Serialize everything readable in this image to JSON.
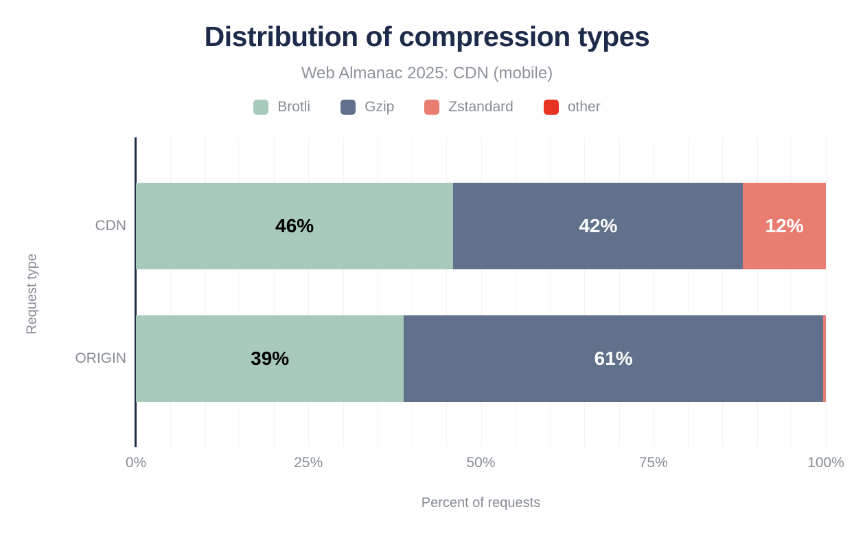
{
  "colors": {
    "title": "#1e2a4a",
    "axis_line": "#1e2a4a",
    "muted_text": "#868c94",
    "subtitle_text": "#8d939b",
    "grid": "#f3f3f3",
    "background": "#ffffff"
  },
  "chart_data": {
    "type": "bar",
    "orientation": "horizontal",
    "stacked": true,
    "title": "Distribution of compression types",
    "subtitle": "Web Almanac 2025: CDN (mobile)",
    "xlabel": "Percent of requests",
    "ylabel": "Request type",
    "xlim": [
      0,
      100
    ],
    "grid": {
      "show": true,
      "interval": 5,
      "color": "#f3f3f3"
    },
    "legend_position": "top",
    "x_ticks": [
      {
        "value": 0,
        "label": "0%"
      },
      {
        "value": 25,
        "label": "25%"
      },
      {
        "value": 50,
        "label": "50%"
      },
      {
        "value": 75,
        "label": "75%"
      },
      {
        "value": 100,
        "label": "100%"
      }
    ],
    "categories": [
      "CDN",
      "ORIGIN"
    ],
    "series": [
      {
        "name": "Brotli",
        "color": "#a7cabb",
        "label_color": "#000000",
        "values": [
          46,
          39
        ],
        "data_labels": [
          "46%",
          "39%"
        ]
      },
      {
        "name": "Gzip",
        "color": "#61718c",
        "label_color": "#ffffff",
        "values": [
          42,
          61
        ],
        "data_labels": [
          "42%",
          "61%"
        ]
      },
      {
        "name": "Zstandard",
        "color": "#e97d72",
        "label_color": "#ffffff",
        "values": [
          12,
          0.4
        ],
        "data_labels": [
          "12%",
          ""
        ]
      },
      {
        "name": "other",
        "color": "#e63322",
        "label_color": "#ffffff",
        "values": [
          0,
          0
        ],
        "data_labels": [
          "",
          ""
        ]
      }
    ]
  }
}
